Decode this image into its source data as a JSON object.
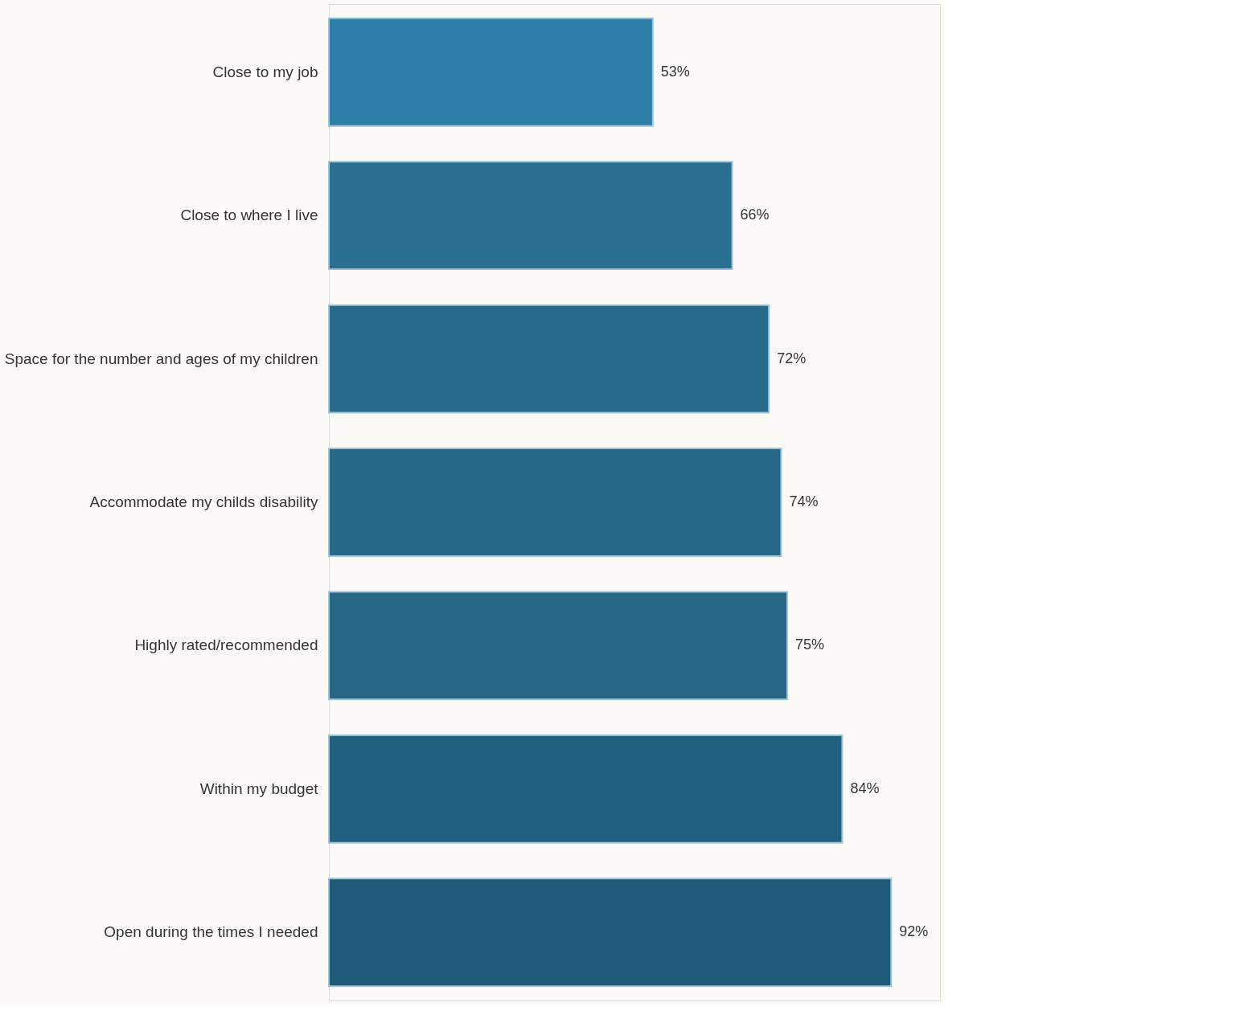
{
  "chart_data": {
    "type": "bar",
    "orientation": "horizontal",
    "categories": [
      "Close to my job",
      "Close to where I live",
      "Space for the number and ages of my children",
      "Accommodate my childs disability",
      "Highly rated/recommended",
      "Within my budget",
      "Open during the times I needed"
    ],
    "values": [
      53,
      66,
      72,
      74,
      75,
      84,
      92
    ],
    "value_labels": [
      "53%",
      "66%",
      "72%",
      "74%",
      "75%",
      "84%",
      "92%"
    ],
    "colors": [
      "#2e7fa8",
      "#2a6f91",
      "#276a8c",
      "#266888",
      "#256785",
      "#22607f",
      "#1f5a78"
    ],
    "grid": false
  }
}
